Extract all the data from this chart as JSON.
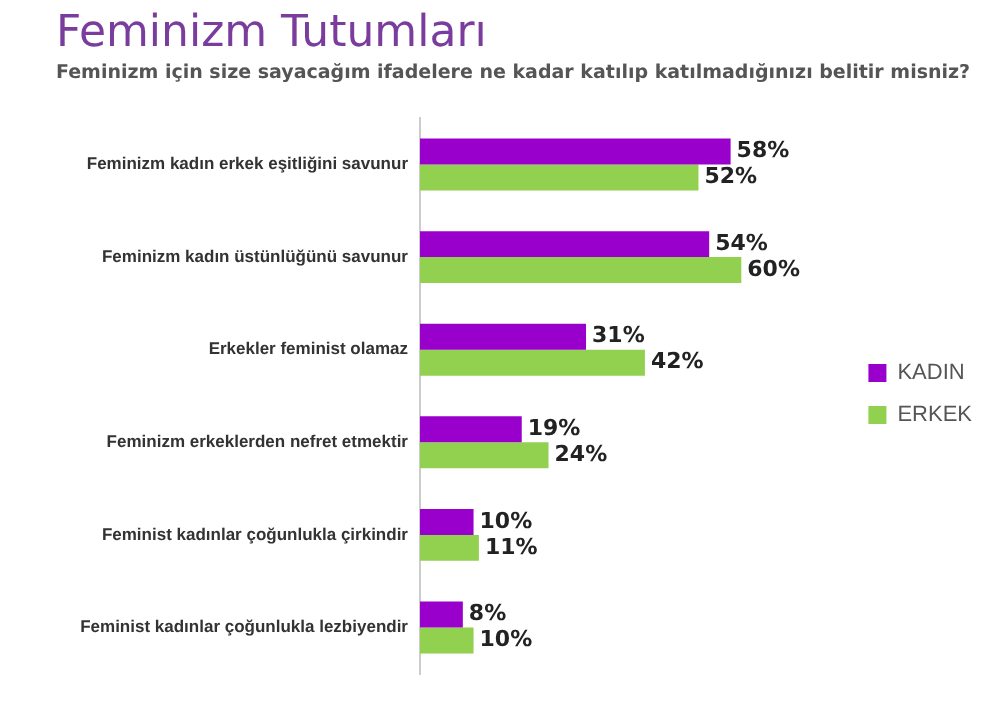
{
  "chart_data": {
    "type": "bar",
    "orientation": "horizontal",
    "title": "Feminizm Tutumları",
    "subtitle": "Feminizm için size sayacağım ifadelere ne kadar katılıp katılmadığınızı belitir misniz?",
    "categories": [
      "Feminizm kadın erkek eşitliğini savunur",
      "Feminizm kadın üstünlüğünü savunur",
      "Erkekler feminist olamaz",
      "Feminizm erkeklerden nefret etmektir",
      "Feminist kadınlar çoğunlukla çirkindir",
      "Feminist kadınlar çoğunlukla lezbiyendir"
    ],
    "series": [
      {
        "name": "KADIN",
        "color": "#9900cc",
        "values": [
          58,
          54,
          31,
          19,
          10,
          8
        ],
        "value_labels": [
          "58%",
          "54%",
          "31%",
          "19%",
          "10%",
          "8%"
        ]
      },
      {
        "name": "ERKEK",
        "color": "#92d050",
        "values": [
          52,
          60,
          42,
          24,
          11,
          10
        ],
        "value_labels": [
          "52%",
          "60%",
          "42%",
          "24%",
          "11%",
          "10%"
        ]
      }
    ],
    "legend": "right",
    "grid": false
  }
}
